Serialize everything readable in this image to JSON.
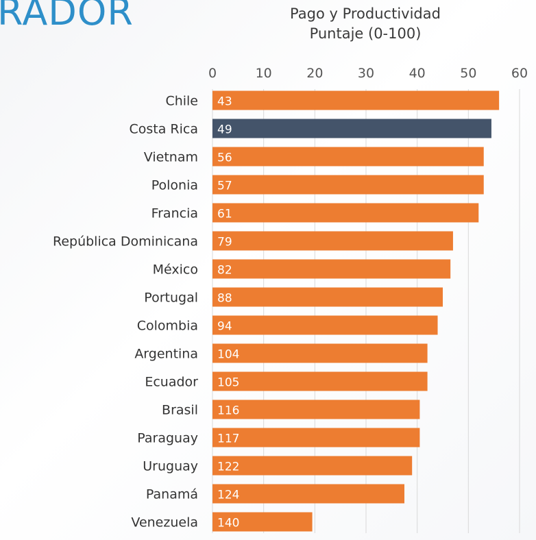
{
  "header": {
    "heading_fragment": "RADOR"
  },
  "chart_data": {
    "type": "bar",
    "orientation": "horizontal",
    "title": "Pago y Productividad",
    "subtitle": "Puntaje (0-100)",
    "xlim": [
      0,
      60
    ],
    "xticks": [
      0,
      10,
      20,
      30,
      40,
      50,
      60
    ],
    "grid": true,
    "categories": [
      "Chile",
      "Costa Rica",
      "Vietnam",
      "Polonia",
      "Francia",
      "República Dominicana",
      "México",
      "Portugal",
      "Colombia",
      "Argentina",
      "Ecuador",
      "Brasil",
      "Paraguay",
      "Uruguay",
      "Panamá",
      "Venezuela"
    ],
    "values": [
      56.0,
      54.5,
      53.0,
      53.0,
      52.0,
      47.0,
      46.5,
      45.0,
      44.0,
      42.0,
      42.0,
      40.5,
      40.5,
      39.0,
      37.5,
      19.5
    ],
    "data_labels": [
      "43",
      "49",
      "56",
      "57",
      "61",
      "79",
      "82",
      "88",
      "94",
      "104",
      "105",
      "116",
      "117",
      "122",
      "124",
      "140"
    ],
    "colors": {
      "default": "#ed7d31",
      "highlight": "#44546a",
      "grid": "#d9d9d9"
    },
    "highlight_category": "Costa Rica"
  }
}
